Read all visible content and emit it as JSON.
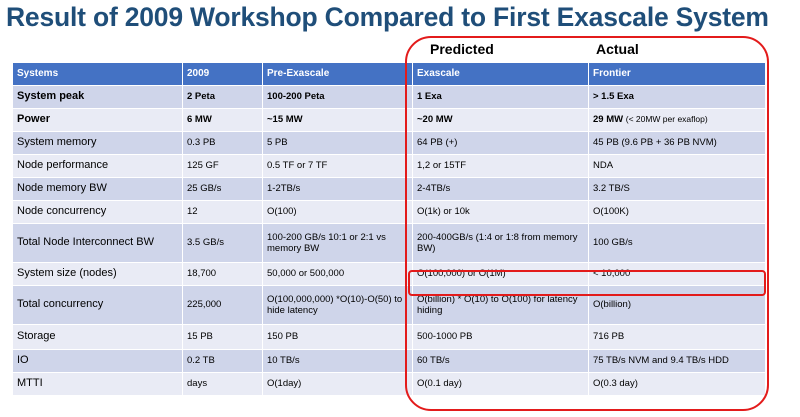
{
  "title": "Result of 2009 Workshop Compared to First Exascale System",
  "subheaders": {
    "predicted": "Predicted",
    "actual": "Actual"
  },
  "table": {
    "headers": [
      "Systems",
      "2009",
      "Pre-Exascale",
      "Exascale",
      "Frontier"
    ],
    "rows": [
      {
        "label": "System peak",
        "y2009": "2 Peta",
        "pre": "100-200 Peta",
        "exa": "1 Exa",
        "frontier": "> 1.5 Exa",
        "frontier_note": ""
      },
      {
        "label": "Power",
        "y2009": "6 MW",
        "pre": "~15 MW",
        "exa": "~20 MW",
        "frontier": "29 MW",
        "frontier_note": "(< 20MW per exaflop)"
      },
      {
        "label": "System memory",
        "y2009": "0.3 PB",
        "pre": "5 PB",
        "exa": "64 PB (+)",
        "frontier": "45 PB  (9.6 PB + 36 PB NVM)",
        "frontier_note": ""
      },
      {
        "label": "Node performance",
        "y2009": "125 GF",
        "pre": "0.5 TF or 7 TF",
        "exa": "1,2  or 15TF",
        "frontier": "NDA",
        "frontier_note": ""
      },
      {
        "label": "Node memory BW",
        "y2009": "25 GB/s",
        "pre": "1-2TB/s",
        "exa": "2-4TB/s",
        "frontier": "3.2 TB/S",
        "frontier_note": ""
      },
      {
        "label": "Node concurrency",
        "y2009": "12",
        "pre": "O(100)",
        "exa": "O(1k) or 10k",
        "frontier": "O(100K)",
        "frontier_note": ""
      },
      {
        "label": "Total Node Interconnect BW",
        "y2009": "3.5 GB/s",
        "pre": "100-200 GB/s 10:1 or 2:1 vs memory BW",
        "exa": "200-400GB/s (1:4 or 1:8 from memory BW)",
        "frontier": "100 GB/s",
        "frontier_note": ""
      },
      {
        "label": "System size  (nodes)",
        "y2009": "18,700",
        "pre": "50,000 or 500,000",
        "exa": "O(100,000) or O(1M)",
        "frontier": "< 10,000",
        "frontier_note": ""
      },
      {
        "label": "Total concurrency",
        "y2009": "225,000",
        "pre": "O(100,000,000) *O(10)-O(50) to hide latency",
        "exa": "O(billion) * O(10) to O(100) for latency hiding",
        "frontier": "O(billion)",
        "frontier_note": ""
      },
      {
        "label": "Storage",
        "y2009": "15 PB",
        "pre": "150 PB",
        "exa": "500-1000 PB",
        "frontier": "716 PB",
        "frontier_note": ""
      },
      {
        "label": "IO",
        "y2009": "0.2 TB",
        "pre": "10 TB/s",
        "exa": "60 TB/s",
        "frontier": "75 TB/s  NVM and 9.4 TB/s HDD",
        "frontier_note": ""
      },
      {
        "label": "MTTI",
        "y2009": "days",
        "pre": "O(1day)",
        "exa": "O(0.1 day)",
        "frontier": "O(0.3 day)",
        "frontier_note": ""
      }
    ]
  },
  "colors": {
    "header": "#4472c4",
    "row_dark": "#cfd5ea",
    "row_light": "#e9ebf5",
    "title": "#1f4e79",
    "highlight": "#e31b1b"
  }
}
